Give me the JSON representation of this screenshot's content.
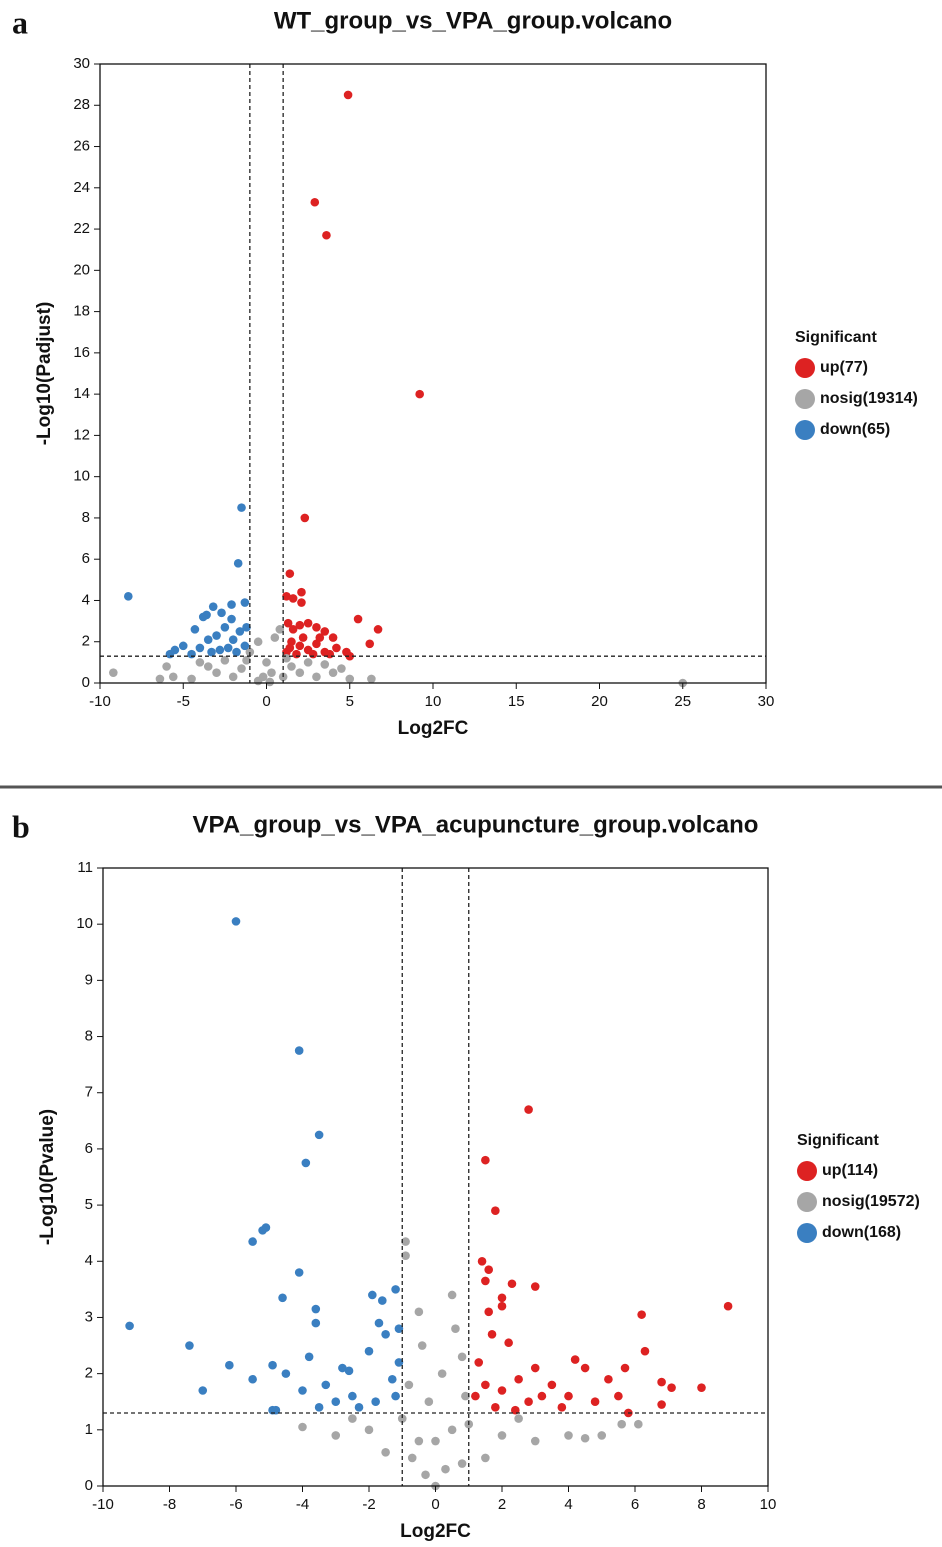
{
  "chart_data": [
    {
      "type": "scatter",
      "panel_label": "a",
      "title": "WT_group_vs_VPA_group.volcano",
      "xlabel": "Log2FC",
      "ylabel": "-Log10(Padjust)",
      "legend_title": "Significant",
      "legend": "right",
      "xlim": [
        -10,
        30
      ],
      "ylim": [
        0,
        30
      ],
      "xticks": [
        -10,
        -5,
        0,
        5,
        10,
        15,
        20,
        25,
        30
      ],
      "yticks": [
        0,
        2,
        4,
        6,
        8,
        10,
        12,
        14,
        16,
        18,
        20,
        22,
        24,
        26,
        28,
        30
      ],
      "thresholds": {
        "x": [
          -1,
          1
        ],
        "y": 1.3
      },
      "series": [
        {
          "name": "up(77)",
          "color": "#dd2222",
          "x": [
            4.9,
            2.9,
            3.6,
            9.2,
            2.3,
            1.4,
            1.2,
            1.6,
            2.1,
            2.1,
            5.5,
            6.7,
            6.2,
            4.8,
            5,
            1.3,
            1.6,
            2,
            2.5,
            3,
            3.5,
            4,
            1.5,
            2,
            2.5,
            3,
            3.5,
            4.2,
            1.2,
            1.8,
            2.8,
            3.8,
            2.2,
            1.4,
            3.2
          ],
          "values": [
            28.5,
            23.3,
            21.7,
            14,
            8,
            5.3,
            4.2,
            4.1,
            4.4,
            3.9,
            3.1,
            2.6,
            1.9,
            1.5,
            1.3,
            2.9,
            2.6,
            2.8,
            2.9,
            2.7,
            2.5,
            2.2,
            2,
            1.8,
            1.6,
            1.9,
            1.5,
            1.7,
            1.5,
            1.4,
            1.4,
            1.4,
            2.2,
            1.7,
            2.2
          ]
        },
        {
          "name": "nosig(19314)",
          "color": "#a6a6a6",
          "x": [
            -9.2,
            25,
            -6.4,
            -6,
            -5.6,
            -4,
            -3.5,
            -3,
            -2,
            -1,
            -0.5,
            0,
            0.5,
            0.8,
            1,
            1.5,
            2,
            3,
            4,
            5,
            6.3,
            -0.5,
            0.3,
            -1.5,
            2.5,
            3.5,
            -2.5,
            -0.2,
            0.2,
            -4.5,
            4.5,
            1.2,
            -1.2
          ],
          "values": [
            0.5,
            0,
            0.2,
            0.8,
            0.3,
            1,
            0.8,
            0.5,
            0.3,
            1.5,
            2,
            1,
            2.2,
            2.6,
            0.3,
            0.8,
            0.5,
            0.3,
            0.5,
            0.2,
            0.2,
            0.1,
            0.5,
            0.7,
            1,
            0.9,
            1.1,
            0.3,
            0.05,
            0.2,
            0.7,
            1.2,
            1.1
          ]
        },
        {
          "name": "down(65)",
          "color": "#3a7fc1",
          "x": [
            -8.3,
            -1.5,
            -1.7,
            -2.1,
            -1.3,
            -3.2,
            -3.6,
            -3.8,
            -2.7,
            -4.3,
            -5.5,
            -5,
            -4.5,
            -5.8,
            -4,
            -3.5,
            -3,
            -2.5,
            -2,
            -1.6,
            -1.3,
            -2.3,
            -3.3,
            -2.8,
            -1.8,
            -1.2,
            -2.1
          ],
          "values": [
            4.2,
            8.5,
            5.8,
            3.8,
            3.9,
            3.7,
            3.3,
            3.2,
            3.4,
            2.6,
            1.6,
            1.8,
            1.4,
            1.4,
            1.7,
            2.1,
            2.3,
            2.7,
            2.1,
            2.5,
            1.8,
            1.7,
            1.5,
            1.6,
            1.5,
            2.7,
            3.1
          ]
        }
      ]
    },
    {
      "type": "scatter",
      "panel_label": "b",
      "title": "VPA_group_vs_VPA_acupuncture_group.volcano",
      "xlabel": "Log2FC",
      "ylabel": "-Log10(Pvalue)",
      "legend_title": "Significant",
      "legend": "right",
      "xlim": [
        -10,
        10
      ],
      "ylim": [
        0,
        11
      ],
      "xticks": [
        -10,
        -8,
        -6,
        -4,
        -2,
        0,
        2,
        4,
        6,
        8,
        10
      ],
      "yticks": [
        0,
        1,
        2,
        3,
        4,
        5,
        6,
        7,
        8,
        9,
        10,
        11
      ],
      "thresholds": {
        "x": [
          -1,
          1
        ],
        "y": 1.3
      },
      "series": [
        {
          "name": "up(114)",
          "color": "#dd2222",
          "x": [
            2.8,
            1.5,
            1.8,
            8.8,
            6.2,
            6.3,
            1.4,
            1.6,
            1.5,
            2.3,
            3,
            2,
            2,
            1.6,
            1.7,
            2.2,
            6.8,
            7.1,
            8,
            6.8,
            5.7,
            5.2,
            4.5,
            4.2,
            4,
            3.5,
            3,
            2.5,
            2,
            1.5,
            1.2,
            1.3,
            2.8,
            3.8,
            5.8,
            4.8,
            1.8,
            2.4,
            3.2,
            5.5
          ],
          "values": [
            6.7,
            5.8,
            4.9,
            3.2,
            3.05,
            2.4,
            4,
            3.85,
            3.65,
            3.6,
            3.55,
            3.35,
            3.2,
            3.1,
            2.7,
            2.55,
            1.85,
            1.75,
            1.75,
            1.45,
            2.1,
            1.9,
            2.1,
            2.25,
            1.6,
            1.8,
            2.1,
            1.9,
            1.7,
            1.8,
            1.6,
            2.2,
            1.5,
            1.4,
            1.3,
            1.5,
            1.4,
            1.35,
            1.6,
            1.6
          ]
        },
        {
          "name": "nosig(19572)",
          "color": "#a6a6a6",
          "x": [
            0,
            -0.3,
            0.3,
            -0.5,
            0.5,
            -0.9,
            -0.9,
            -0.5,
            0.5,
            0.6,
            -0.4,
            0.8,
            -1,
            1,
            -2,
            2,
            -3,
            3,
            4,
            5,
            5.6,
            6.1,
            -4,
            -0.7,
            0.8,
            -1.5,
            1.5,
            -0.2,
            0.2,
            0.9,
            -0.8,
            0,
            -2.5,
            2.5,
            4.5
          ],
          "values": [
            0,
            0.2,
            0.3,
            0.8,
            1,
            4.35,
            4.1,
            3.1,
            3.4,
            2.8,
            2.5,
            2.3,
            1.2,
            1.1,
            1,
            0.9,
            0.9,
            0.8,
            0.9,
            0.9,
            1.1,
            1.1,
            1.05,
            0.5,
            0.4,
            0.6,
            0.5,
            1.5,
            2,
            1.6,
            1.8,
            0.8,
            1.2,
            1.2,
            0.85
          ]
        },
        {
          "name": "down(168)",
          "color": "#3a7fc1",
          "x": [
            -6,
            -4.1,
            -3.5,
            -3.9,
            -5.1,
            -5.2,
            -5.5,
            -4.1,
            -4.6,
            -3.6,
            -3.6,
            -9.2,
            -7.4,
            -6.2,
            -7,
            -5.5,
            -4.9,
            -4.5,
            -4,
            -3.8,
            -3.3,
            -2.8,
            -2.5,
            -2,
            -1.7,
            -1.6,
            -1.2,
            -1.5,
            -1.1,
            -1.3,
            -1.8,
            -2.3,
            -3,
            -3.5,
            -4.9,
            -1.9,
            -1.2,
            -2.6,
            -4.8,
            -1.1
          ],
          "values": [
            10.05,
            7.75,
            6.25,
            5.75,
            4.6,
            4.55,
            4.35,
            3.8,
            3.35,
            3.15,
            2.9,
            2.85,
            2.5,
            2.15,
            1.7,
            1.9,
            2.15,
            2,
            1.7,
            2.3,
            1.8,
            2.1,
            1.6,
            2.4,
            2.9,
            3.3,
            3.5,
            2.7,
            2.2,
            1.9,
            1.5,
            1.4,
            1.5,
            1.4,
            1.35,
            3.4,
            1.6,
            2.05,
            1.35,
            2.8
          ]
        }
      ]
    }
  ]
}
